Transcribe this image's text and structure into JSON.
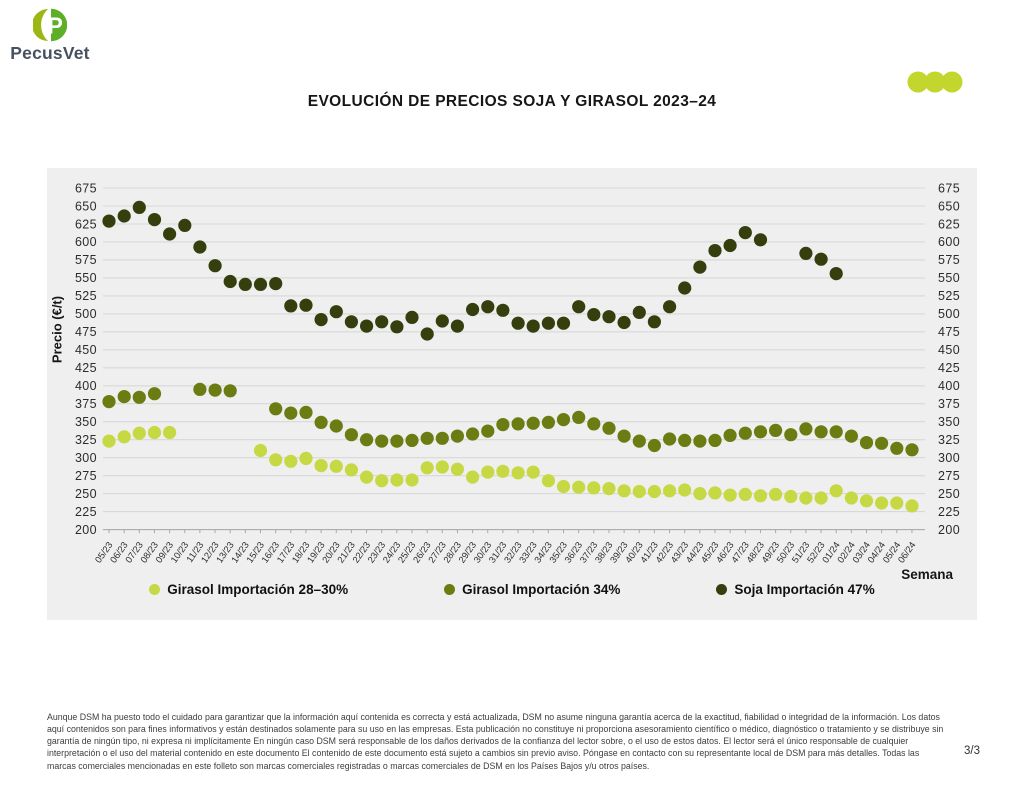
{
  "logo": {
    "brand": "PecusVet"
  },
  "header": {
    "title": "EVOLUCIÓN DE PRECIOS SOJA Y GIRASOL 2023–24",
    "decoration_color": "#c3d62e"
  },
  "chart_data": {
    "type": "scatter",
    "title": "EVOLUCIÓN DE PRECIOS SOJA Y GIRASOL 2023–24",
    "ylabel": "Precio (€/t)",
    "xlabel": "Semana",
    "ylim": [
      200,
      675
    ],
    "ytick_step": 25,
    "grid": true,
    "legend_position": "bottom",
    "panel_background": "#efefef",
    "gridline_color": "#d8d8d8",
    "categories": [
      "05/23",
      "06/23",
      "07/23",
      "08/23",
      "09/23",
      "10/23",
      "11/23",
      "12/23",
      "13/23",
      "14/23",
      "15/23",
      "16/23",
      "17/23",
      "18/23",
      "19/23",
      "20/23",
      "21/23",
      "22/23",
      "23/23",
      "24/23",
      "25/23",
      "26/23",
      "27/23",
      "28/23",
      "29/23",
      "30/23",
      "31/23",
      "32/23",
      "33/23",
      "34/23",
      "35/23",
      "36/23",
      "37/23",
      "38/23",
      "39/23",
      "40/23",
      "41/23",
      "42/23",
      "43/23",
      "44/23",
      "45/23",
      "46/23",
      "47/23",
      "48/23",
      "49/23",
      "50/23",
      "51/23",
      "52/23",
      "01/24",
      "02/24",
      "03/24",
      "04/24",
      "05/24",
      "06/24"
    ],
    "series": [
      {
        "name": "Girasol Importación 28–30%",
        "color": "#c6d944",
        "values": [
          323,
          329,
          334,
          335,
          335,
          null,
          null,
          null,
          null,
          null,
          310,
          297,
          295,
          299,
          289,
          288,
          283,
          273,
          268,
          269,
          269,
          286,
          287,
          284,
          273,
          280,
          281,
          279,
          280,
          268,
          260,
          259,
          258,
          257,
          254,
          253,
          253,
          254,
          255,
          250,
          251,
          248,
          249,
          247,
          249,
          246,
          244,
          244,
          254,
          244,
          240,
          237,
          237,
          233
        ]
      },
      {
        "name": "Girasol Importación 34%",
        "color": "#6b7c12",
        "values": [
          378,
          385,
          384,
          389,
          null,
          null,
          395,
          394,
          393,
          null,
          null,
          368,
          362,
          363,
          349,
          344,
          332,
          325,
          323,
          323,
          324,
          327,
          327,
          330,
          333,
          337,
          346,
          347,
          348,
          349,
          353,
          356,
          347,
          341,
          330,
          323,
          317,
          326,
          324,
          323,
          324,
          331,
          334,
          336,
          338,
          332,
          340,
          336,
          336,
          330,
          321,
          320,
          313,
          311
        ]
      },
      {
        "name": "Soja Importación 47%",
        "color": "#353f0e",
        "values": [
          629,
          636,
          648,
          631,
          611,
          623,
          593,
          567,
          545,
          541,
          541,
          542,
          511,
          512,
          492,
          503,
          489,
          483,
          489,
          482,
          495,
          472,
          490,
          483,
          506,
          510,
          505,
          487,
          483,
          487,
          487,
          510,
          499,
          496,
          488,
          502,
          489,
          510,
          536,
          565,
          588,
          595,
          613,
          603,
          null,
          null,
          584,
          576,
          556,
          null,
          null,
          null,
          null,
          null
        ]
      }
    ]
  },
  "footer": {
    "disclaimer": "Aunque DSM ha puesto todo el cuidado para garantizar que la información aquí contenida es correcta y está actualizada, DSM no asume ninguna garantía acerca de la exactitud, fiabilidad o integridad de la información. Los datos aquí contenidos son para fines informativos y están destinados solamente para su uso en las empresas. Esta publicación no constituye ni proporciona asesoramiento científico o médico, diagnóstico o tratamiento y se distribuye sin garantía de ningún tipo, ni expresa ni implícitamente En ningún caso DSM será responsable de los daños derivados de la confianza del lector sobre, o el uso de estos datos. El lector será el único responsable de cualquier interpretación o el uso del material contenido en este documento El contenido de este documento está sujeto a cambios sin previo aviso. Póngase en contacto con su representante local de DSM para más detalles. Todas las marcas comerciales mencionadas en este folleto son marcas comerciales registradas o marcas comerciales de DSM en los Países Bajos y/u otros países.",
    "page_number": "3/3"
  }
}
